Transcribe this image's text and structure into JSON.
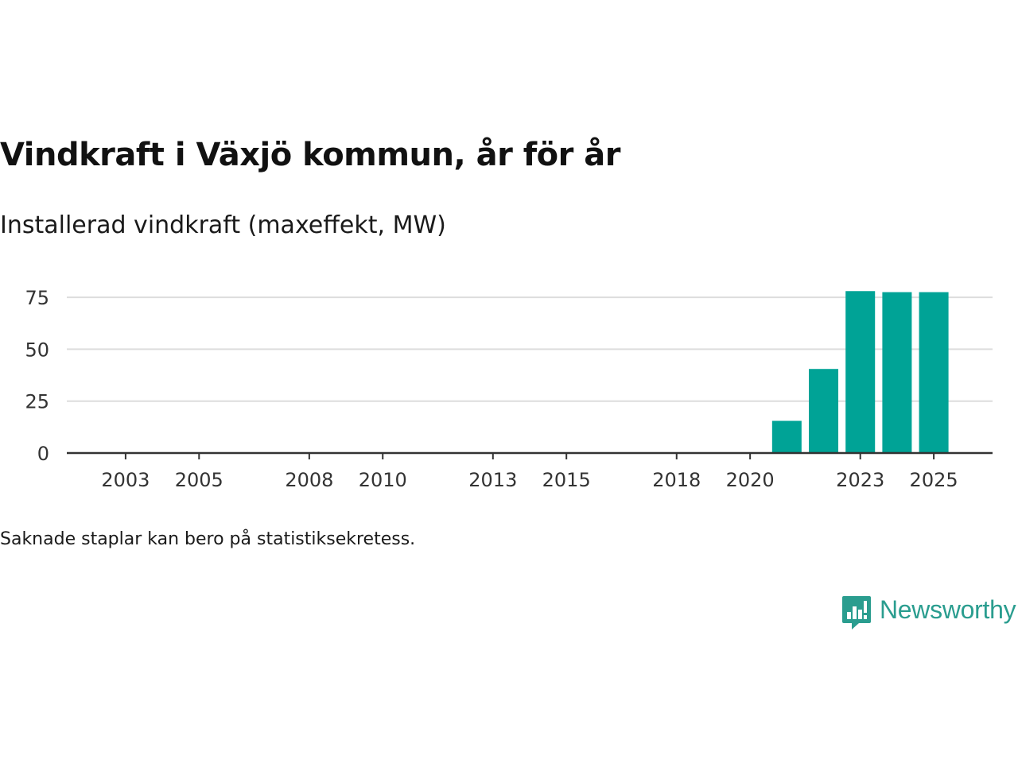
{
  "chart_data": {
    "type": "bar",
    "title": "Vindkraft i Växjö kommun, år för år",
    "subtitle": "Installerad vindkraft (maxeffekt, MW)",
    "xlabel": "",
    "ylabel": "",
    "categories": [
      2003,
      2004,
      2005,
      2006,
      2007,
      2008,
      2009,
      2010,
      2011,
      2012,
      2013,
      2014,
      2015,
      2016,
      2017,
      2018,
      2019,
      2020,
      2021,
      2022,
      2023,
      2024,
      2025
    ],
    "values": [
      0,
      0,
      0,
      0,
      0,
      0,
      0,
      0,
      0,
      0,
      0,
      0,
      0,
      0,
      0,
      0,
      0,
      0,
      15.5,
      40.5,
      78,
      77.5,
      77.5
    ],
    "x_ticks": [
      "2003",
      "2005",
      "2008",
      "2010",
      "2013",
      "2015",
      "2018",
      "2020",
      "2023",
      "2025"
    ],
    "y_ticks": [
      "0",
      "25",
      "50",
      "75"
    ],
    "ylim": [
      0,
      78
    ],
    "xlim": [
      2001.4,
      2026.6
    ],
    "grid": true,
    "bar_color": "#00a396",
    "grid_color": "#dddddd",
    "axis_color": "#333333"
  },
  "note": "Saknade staplar kan bero på statistiksekretess.",
  "brand": {
    "name": "Newsworthy",
    "color": "#2a9d8f"
  }
}
